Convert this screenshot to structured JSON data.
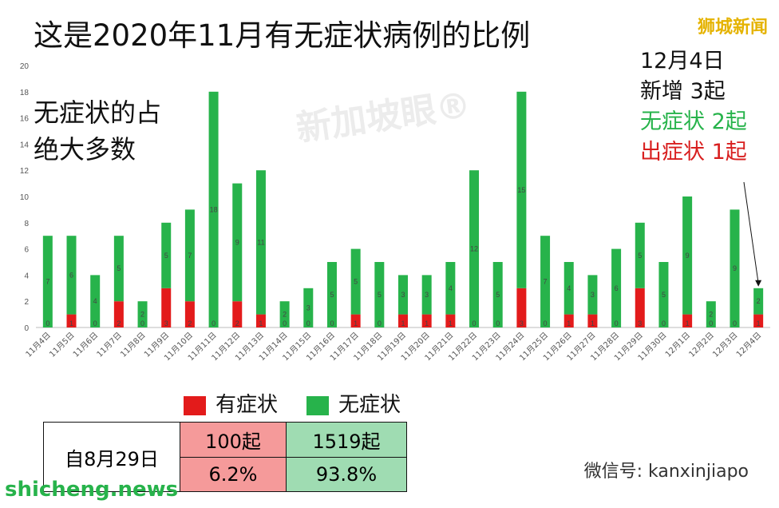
{
  "title": "这是2020年11月有无症状病例的比例",
  "brand": "狮城新闻",
  "watermark": "新加坡眼®",
  "note_lines": [
    "无症状的占",
    "绝大多数"
  ],
  "annotation": {
    "date": "12月4日",
    "total": "新增 3起",
    "asymptomatic": "无症状 2起",
    "symptomatic": "出症状 1起"
  },
  "legend": {
    "symptomatic": "有症状",
    "asymptomatic": "无症状"
  },
  "stats": {
    "row_label": "自8月29日",
    "symptomatic_count": "100起",
    "asymptomatic_count": "1519起",
    "symptomatic_pct": "6.2%",
    "asymptomatic_pct": "93.8%"
  },
  "footer_left": "shicheng.news",
  "footer_right": "微信号: kanxinjiapo",
  "colors": {
    "symptomatic": "#e31b1b",
    "asymptomatic": "#27b34b",
    "pink_cell": "#f59a9a",
    "green_cell": "#9fdcb2"
  },
  "chart_data": {
    "type": "bar",
    "stacked": true,
    "categories": [
      "11月4日",
      "11月5日",
      "11月6日",
      "11月7日",
      "11月8日",
      "11月9日",
      "11月10日",
      "11月11日",
      "11月12日",
      "11月13日",
      "11月14日",
      "11月15日",
      "11月16日",
      "11月17日",
      "11月18日",
      "11月19日",
      "11月20日",
      "11月21日",
      "11月22日",
      "11月23日",
      "11月24日",
      "11月25日",
      "11月26日",
      "11月27日",
      "11月28日",
      "11月29日",
      "11月30日",
      "12月1日",
      "12月2日",
      "12月3日",
      "12月4日"
    ],
    "series": [
      {
        "name": "有症状",
        "values": [
          0,
          1,
          0,
          2,
          0,
          3,
          2,
          0,
          2,
          1,
          0,
          0,
          0,
          1,
          0,
          1,
          1,
          1,
          0,
          0,
          3,
          0,
          1,
          1,
          0,
          3,
          0,
          1,
          0,
          0,
          1
        ]
      },
      {
        "name": "无症状",
        "values": [
          7,
          6,
          4,
          5,
          2,
          5,
          7,
          18,
          9,
          11,
          2,
          3,
          5,
          5,
          5,
          3,
          3,
          4,
          12,
          5,
          15,
          7,
          4,
          3,
          6,
          5,
          5,
          9,
          2,
          9,
          2
        ]
      }
    ],
    "ylim": [
      0,
      20
    ],
    "yticks": [
      0,
      2,
      4,
      6,
      8,
      10,
      12,
      14,
      16,
      18,
      20
    ],
    "grid": false,
    "legend_position": "bottom"
  }
}
